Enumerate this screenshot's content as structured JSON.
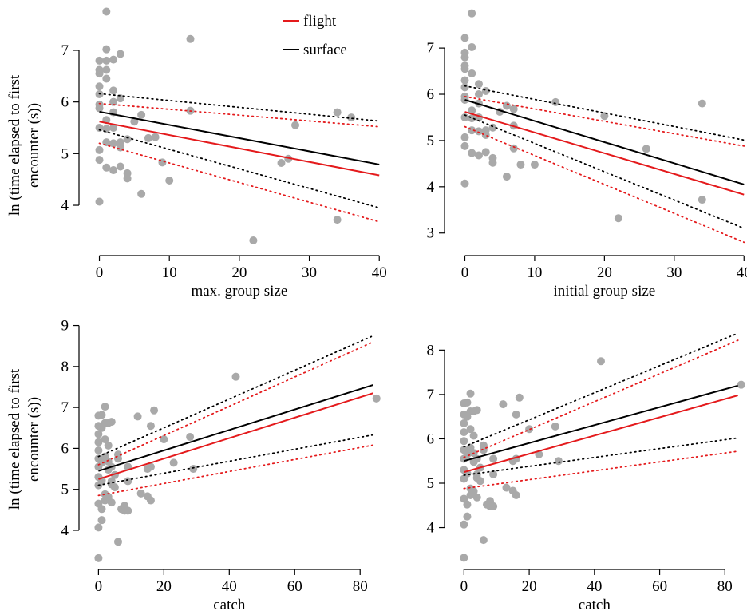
{
  "figure": {
    "shared_ylabel_line1": "ln (time elapsed to first",
    "shared_ylabel_line2": "encounter (s))"
  },
  "legend": {
    "placement": "top-right of panel 1",
    "entries": [
      {
        "label": "flight",
        "color": "#e41a1c"
      },
      {
        "label": "surface",
        "color": "#000000"
      }
    ]
  },
  "colors": {
    "points": "#a9a9a9",
    "flight": "#e41a1c",
    "surface": "#000000",
    "axis": "#000000"
  },
  "chart_data": [
    {
      "type": "scatter",
      "panel": "top-left",
      "xlabel": "max. group size",
      "ylabel": "",
      "xlim": [
        -2,
        41
      ],
      "ylim": [
        3.15,
        7.85
      ],
      "xticks": [
        0,
        10,
        20,
        30,
        40
      ],
      "yticks": [
        4,
        5,
        6,
        7
      ],
      "points": [
        [
          0,
          4.07
        ],
        [
          0,
          4.88
        ],
        [
          0,
          5.07
        ],
        [
          0,
          5.5
        ],
        [
          0,
          5.88
        ],
        [
          0,
          5.95
        ],
        [
          0,
          6.15
        ],
        [
          0,
          6.3
        ],
        [
          0,
          6.55
        ],
        [
          0,
          6.62
        ],
        [
          0,
          6.8
        ],
        [
          1,
          4.73
        ],
        [
          1,
          5.22
        ],
        [
          1,
          5.48
        ],
        [
          1,
          5.65
        ],
        [
          1,
          6.45
        ],
        [
          1,
          6.62
        ],
        [
          1,
          6.8
        ],
        [
          1,
          7.02
        ],
        [
          1,
          7.75
        ],
        [
          2,
          4.68
        ],
        [
          2,
          5.2
        ],
        [
          2,
          5.5
        ],
        [
          2,
          5.8
        ],
        [
          2,
          6.0
        ],
        [
          2,
          6.22
        ],
        [
          2,
          6.82
        ],
        [
          3,
          4.75
        ],
        [
          3,
          5.12
        ],
        [
          3,
          5.22
        ],
        [
          3,
          6.07
        ],
        [
          3,
          6.93
        ],
        [
          4,
          4.52
        ],
        [
          4,
          4.62
        ],
        [
          4,
          5.28
        ],
        [
          5,
          5.62
        ],
        [
          6,
          4.22
        ],
        [
          6,
          5.75
        ],
        [
          7,
          5.3
        ],
        [
          8,
          5.32
        ],
        [
          9,
          4.83
        ],
        [
          10,
          4.48
        ],
        [
          13,
          7.22
        ],
        [
          13,
          5.83
        ],
        [
          22,
          3.32
        ],
        [
          26,
          4.82
        ],
        [
          27,
          4.9
        ],
        [
          28,
          5.55
        ],
        [
          34,
          3.72
        ],
        [
          34,
          5.8
        ],
        [
          36,
          5.7
        ]
      ],
      "fits": [
        {
          "name": "flight",
          "x": [
            0,
            40
          ],
          "fit": [
            5.62,
            4.58
          ],
          "upper": [
            5.97,
            5.52
          ],
          "lower": [
            5.2,
            3.68
          ]
        },
        {
          "name": "surface",
          "x": [
            0,
            40
          ],
          "fit": [
            5.81,
            4.79
          ],
          "upper": [
            6.16,
            5.63
          ],
          "lower": [
            5.46,
            3.95
          ]
        }
      ]
    },
    {
      "type": "scatter",
      "panel": "top-right",
      "xlabel": "initial group size",
      "ylabel": "",
      "xlim": [
        -2,
        41
      ],
      "ylim": [
        2.65,
        7.9
      ],
      "xticks": [
        0,
        10,
        20,
        30,
        40
      ],
      "yticks": [
        3,
        4,
        5,
        6,
        7
      ],
      "points": [
        [
          0,
          4.07
        ],
        [
          0,
          4.88
        ],
        [
          0,
          5.07
        ],
        [
          0,
          5.5
        ],
        [
          0,
          5.88
        ],
        [
          0,
          5.95
        ],
        [
          0,
          6.15
        ],
        [
          0,
          6.3
        ],
        [
          0,
          6.55
        ],
        [
          0,
          6.62
        ],
        [
          0,
          6.8
        ],
        [
          0,
          6.9
        ],
        [
          0,
          7.22
        ],
        [
          1,
          4.73
        ],
        [
          1,
          5.22
        ],
        [
          1,
          5.48
        ],
        [
          1,
          5.65
        ],
        [
          1,
          6.45
        ],
        [
          1,
          7.02
        ],
        [
          1,
          7.75
        ],
        [
          2,
          4.68
        ],
        [
          2,
          5.2
        ],
        [
          2,
          5.5
        ],
        [
          2,
          5.8
        ],
        [
          2,
          6.0
        ],
        [
          2,
          6.22
        ],
        [
          3,
          4.75
        ],
        [
          3,
          5.12
        ],
        [
          3,
          5.22
        ],
        [
          3,
          6.07
        ],
        [
          4,
          4.52
        ],
        [
          4,
          4.62
        ],
        [
          4,
          5.28
        ],
        [
          5,
          5.62
        ],
        [
          6,
          4.22
        ],
        [
          6,
          5.75
        ],
        [
          7,
          4.83
        ],
        [
          7,
          5.32
        ],
        [
          7,
          5.68
        ],
        [
          8,
          4.48
        ],
        [
          10,
          4.48
        ],
        [
          13,
          5.83
        ],
        [
          20,
          5.53
        ],
        [
          22,
          3.32
        ],
        [
          26,
          4.82
        ],
        [
          34,
          3.72
        ],
        [
          34,
          5.8
        ]
      ],
      "fits": [
        {
          "name": "flight",
          "x": [
            0,
            40
          ],
          "fit": [
            5.62,
            3.83
          ],
          "upper": [
            5.95,
            4.88
          ],
          "lower": [
            5.3,
            2.8
          ]
        },
        {
          "name": "surface",
          "x": [
            0,
            40
          ],
          "fit": [
            5.88,
            4.05
          ],
          "upper": [
            6.18,
            5.01
          ],
          "lower": [
            5.55,
            3.1
          ]
        }
      ]
    },
    {
      "type": "scatter",
      "panel": "bottom-left",
      "xlabel": "catch",
      "ylabel": "",
      "xlim": [
        -4,
        88
      ],
      "ylim": [
        3.2,
        9.05
      ],
      "xticks": [
        0,
        20,
        40,
        60,
        80
      ],
      "yticks": [
        4,
        5,
        6,
        7,
        8,
        9
      ],
      "points": [
        [
          0,
          3.32
        ],
        [
          0,
          4.07
        ],
        [
          0,
          4.65
        ],
        [
          0,
          5.1
        ],
        [
          0,
          5.3
        ],
        [
          0,
          5.55
        ],
        [
          0,
          5.75
        ],
        [
          0,
          5.95
        ],
        [
          0,
          6.15
        ],
        [
          0,
          6.35
        ],
        [
          0,
          6.55
        ],
        [
          0,
          6.8
        ],
        [
          1,
          4.25
        ],
        [
          1,
          4.52
        ],
        [
          1,
          5.22
        ],
        [
          1,
          5.65
        ],
        [
          1,
          6.5
        ],
        [
          1,
          6.82
        ],
        [
          2,
          4.73
        ],
        [
          2,
          4.88
        ],
        [
          2,
          5.8
        ],
        [
          2,
          6.22
        ],
        [
          2,
          6.62
        ],
        [
          2,
          7.02
        ],
        [
          3,
          4.82
        ],
        [
          3,
          5.48
        ],
        [
          3,
          5.68
        ],
        [
          3,
          6.07
        ],
        [
          3,
          6.62
        ],
        [
          4,
          4.68
        ],
        [
          4,
          5.12
        ],
        [
          4,
          5.2
        ],
        [
          4,
          5.55
        ],
        [
          4,
          6.65
        ],
        [
          5,
          5.05
        ],
        [
          5,
          5.35
        ],
        [
          6,
          3.72
        ],
        [
          6,
          5.75
        ],
        [
          6,
          5.85
        ],
        [
          7,
          4.52
        ],
        [
          8,
          4.48
        ],
        [
          8,
          4.6
        ],
        [
          9,
          5.2
        ],
        [
          9,
          5.55
        ],
        [
          9,
          4.48
        ],
        [
          12,
          6.78
        ],
        [
          13,
          4.9
        ],
        [
          15,
          4.83
        ],
        [
          15,
          5.5
        ],
        [
          16,
          4.73
        ],
        [
          16,
          5.55
        ],
        [
          16,
          6.55
        ],
        [
          17,
          6.93
        ],
        [
          20,
          6.22
        ],
        [
          23,
          5.65
        ],
        [
          28,
          6.28
        ],
        [
          29,
          5.5
        ],
        [
          42,
          7.75
        ],
        [
          85,
          7.22
        ]
      ],
      "fits": [
        {
          "name": "flight",
          "x": [
            0,
            84
          ],
          "fit": [
            5.25,
            7.35
          ],
          "upper": [
            5.6,
            8.6
          ],
          "lower": [
            4.85,
            6.08
          ]
        },
        {
          "name": "surface",
          "x": [
            0,
            84
          ],
          "fit": [
            5.45,
            7.55
          ],
          "upper": [
            5.8,
            8.75
          ],
          "lower": [
            5.1,
            6.33
          ]
        }
      ]
    },
    {
      "type": "scatter",
      "panel": "bottom-right",
      "xlabel": "catch",
      "ylabel": "",
      "xlim": [
        -4,
        88
      ],
      "ylim": [
        3.2,
        8.6
      ],
      "xticks": [
        0,
        20,
        40,
        60,
        80
      ],
      "yticks": [
        4,
        5,
        6,
        7,
        8
      ],
      "points": [
        [
          0,
          3.32
        ],
        [
          0,
          4.07
        ],
        [
          0,
          4.65
        ],
        [
          0,
          5.1
        ],
        [
          0,
          5.3
        ],
        [
          0,
          5.55
        ],
        [
          0,
          5.75
        ],
        [
          0,
          5.95
        ],
        [
          0,
          6.15
        ],
        [
          0,
          6.35
        ],
        [
          0,
          6.55
        ],
        [
          0,
          6.8
        ],
        [
          1,
          4.25
        ],
        [
          1,
          4.52
        ],
        [
          1,
          5.22
        ],
        [
          1,
          5.65
        ],
        [
          1,
          6.5
        ],
        [
          1,
          6.82
        ],
        [
          2,
          4.73
        ],
        [
          2,
          4.88
        ],
        [
          2,
          5.8
        ],
        [
          2,
          6.22
        ],
        [
          2,
          6.62
        ],
        [
          2,
          7.02
        ],
        [
          3,
          4.82
        ],
        [
          3,
          5.48
        ],
        [
          3,
          5.68
        ],
        [
          3,
          6.07
        ],
        [
          3,
          6.62
        ],
        [
          4,
          4.68
        ],
        [
          4,
          5.12
        ],
        [
          4,
          5.2
        ],
        [
          4,
          5.55
        ],
        [
          4,
          6.65
        ],
        [
          5,
          5.05
        ],
        [
          5,
          5.35
        ],
        [
          6,
          3.72
        ],
        [
          6,
          5.75
        ],
        [
          6,
          5.85
        ],
        [
          7,
          4.52
        ],
        [
          8,
          4.48
        ],
        [
          8,
          4.6
        ],
        [
          9,
          5.2
        ],
        [
          9,
          5.55
        ],
        [
          9,
          4.48
        ],
        [
          12,
          6.78
        ],
        [
          13,
          4.9
        ],
        [
          15,
          4.83
        ],
        [
          15,
          5.5
        ],
        [
          16,
          4.73
        ],
        [
          16,
          5.55
        ],
        [
          16,
          6.55
        ],
        [
          17,
          6.93
        ],
        [
          20,
          6.22
        ],
        [
          23,
          5.65
        ],
        [
          28,
          6.28
        ],
        [
          29,
          5.5
        ],
        [
          42,
          7.75
        ],
        [
          85,
          7.22
        ]
      ],
      "fits": [
        {
          "name": "flight",
          "x": [
            0,
            84
          ],
          "fit": [
            5.25,
            6.98
          ],
          "upper": [
            5.58,
            8.22
          ],
          "lower": [
            4.88,
            5.72
          ]
        },
        {
          "name": "surface",
          "x": [
            0,
            84
          ],
          "fit": [
            5.5,
            7.2
          ],
          "upper": [
            5.82,
            8.38
          ],
          "lower": [
            5.18,
            6.02
          ]
        }
      ]
    }
  ]
}
